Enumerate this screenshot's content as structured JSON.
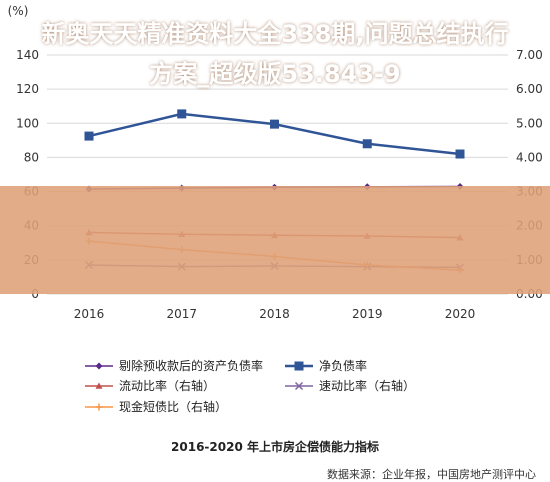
{
  "chart_data": {
    "type": "line",
    "title": "2016-2020 年上市房企偿债能力指标",
    "left_axis_unit": "(%)",
    "right_axis_unit": "",
    "categories": [
      "2016",
      "2017",
      "2018",
      "2019",
      "2020"
    ],
    "left_ylim": [
      0,
      140
    ],
    "left_ticks": [
      "0",
      "20",
      "40",
      "60",
      "80",
      "100",
      "120",
      "140"
    ],
    "right_ylim": [
      0,
      7
    ],
    "right_ticks": [
      "0.00",
      "1.00",
      "2.00",
      "3.00",
      "4.00",
      "5.00",
      "6.00",
      "7.00"
    ],
    "series": [
      {
        "name": "剔除预收款后的资产负债率",
        "axis": "left",
        "color": "#5b2a86",
        "marker": "diamond",
        "values": [
          61.5,
          62,
          62.5,
          62.8,
          63
        ]
      },
      {
        "name": "净负债率",
        "axis": "left",
        "color": "#2f5597",
        "marker": "square",
        "values": [
          92.5,
          105.5,
          99.5,
          88,
          82
        ]
      },
      {
        "name": "流动比率（右轴）",
        "axis": "right",
        "color": "#c0504d",
        "marker": "triangle",
        "values": [
          1.8,
          1.75,
          1.72,
          1.7,
          1.65
        ]
      },
      {
        "name": "速动比率（右轴）",
        "axis": "right",
        "color": "#8064a2",
        "marker": "x",
        "values": [
          0.85,
          0.8,
          0.82,
          0.8,
          0.78
        ]
      },
      {
        "name": "现金短债比（右轴）",
        "axis": "right",
        "color": "#f79646",
        "marker": "cross",
        "values": [
          1.55,
          1.3,
          1.1,
          0.85,
          0.7
        ]
      }
    ],
    "grid": true,
    "legend_position": "bottom"
  },
  "overlay": {
    "banner_text": "新奥天天精准资料大全338期,问题总结执行方案_超级版53.843-9"
  },
  "source_note": "数据来源：企业年报，中国房地产测评中心"
}
